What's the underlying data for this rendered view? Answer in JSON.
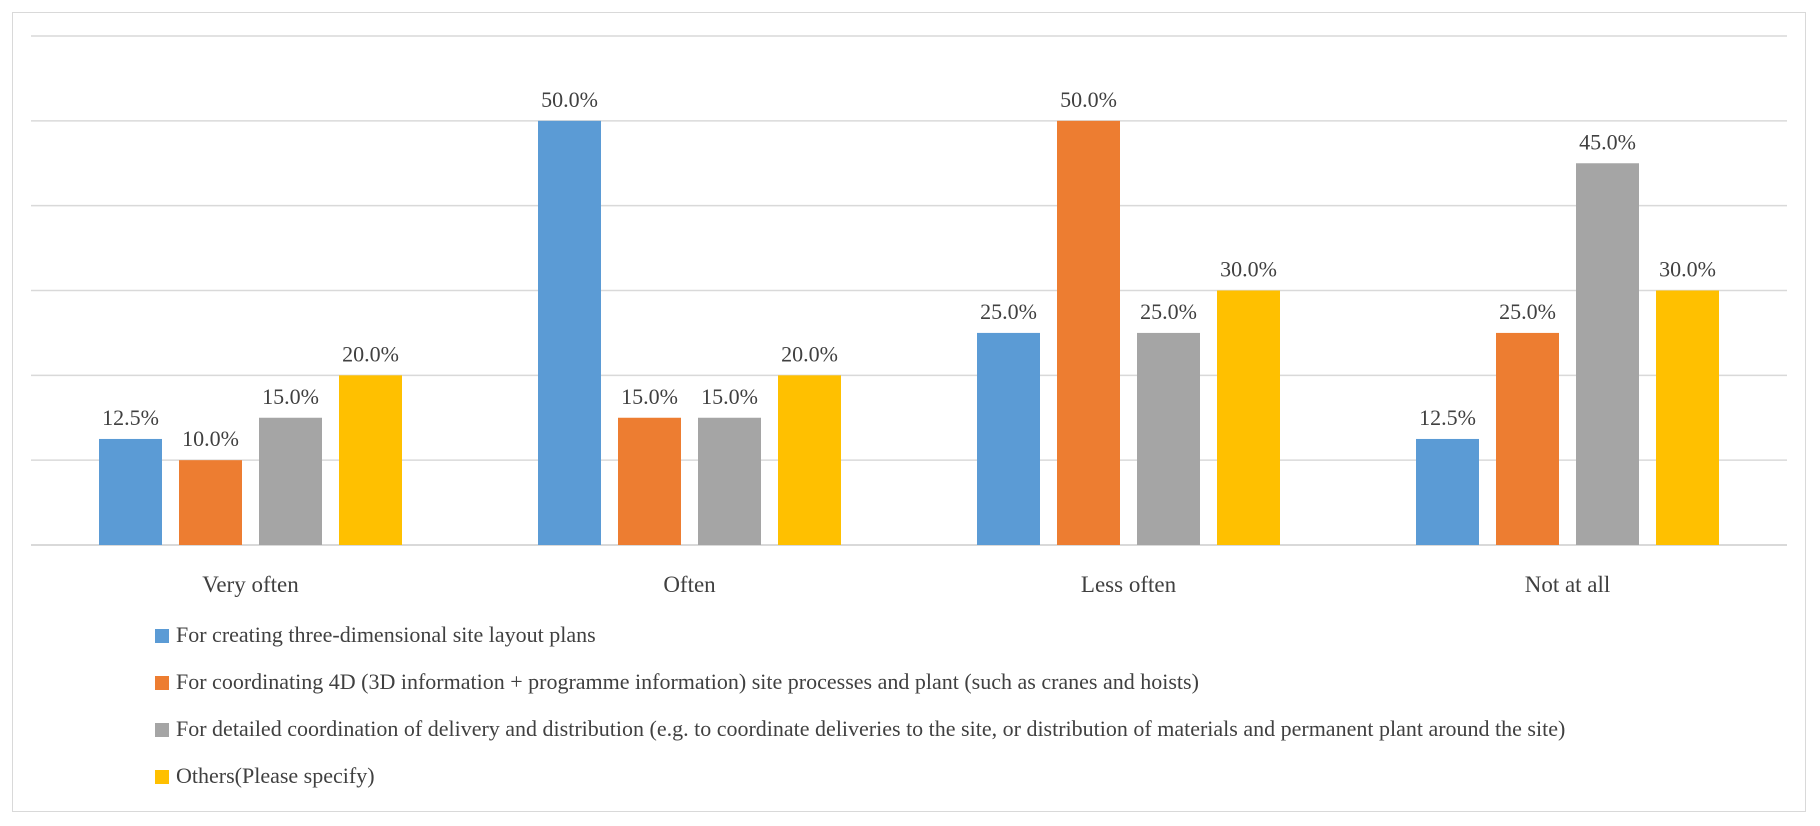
{
  "chart_data": {
    "type": "bar",
    "title": "",
    "xlabel": "",
    "ylabel": "",
    "ylim": [
      0,
      60
    ],
    "ytick_step": 10,
    "grid": true,
    "legend_position": "bottom",
    "categories": [
      "Very often",
      "Often",
      "Less often",
      "Not at all"
    ],
    "series": [
      {
        "name": "For creating three-dimensional site layout plans",
        "color": "#5B9BD5",
        "values": [
          12.5,
          50.0,
          25.0,
          12.5
        ],
        "labels": [
          "12.5%",
          "50.0%",
          "25.0%",
          "12.5%"
        ]
      },
      {
        "name": "For coordinating 4D (3D information + programme information) site processes and plant (such as cranes and hoists)",
        "color": "#ED7D31",
        "values": [
          10.0,
          15.0,
          50.0,
          25.0
        ],
        "labels": [
          "10.0%",
          "15.0%",
          "50.0%",
          "25.0%"
        ]
      },
      {
        "name": "For detailed coordination of delivery and distribution (e.g. to coordinate deliveries to the site, or distribution of materials and permanent plant around the site)",
        "color": "#A5A5A5",
        "values": [
          15.0,
          15.0,
          25.0,
          45.0
        ],
        "labels": [
          "15.0%",
          "15.0%",
          "25.0%",
          "45.0%"
        ]
      },
      {
        "name": "Others(Please specify)",
        "color": "#FFC000",
        "values": [
          20.0,
          20.0,
          30.0,
          30.0
        ],
        "labels": [
          "20.0%",
          "20.0%",
          "30.0%",
          "30.0%"
        ]
      }
    ]
  }
}
